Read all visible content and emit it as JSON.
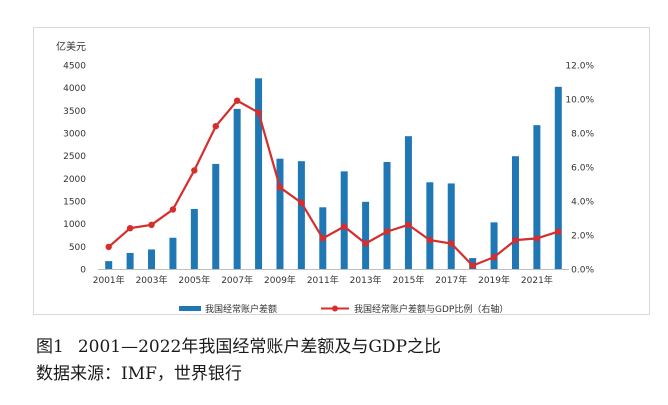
{
  "chart_data": {
    "type": "bar",
    "title": "",
    "left_unit": "亿美元",
    "x": [
      "2001",
      "2002",
      "2003",
      "2004",
      "2005",
      "2006",
      "2007",
      "2008",
      "2009",
      "2010",
      "2011",
      "2012",
      "2013",
      "2014",
      "2015",
      "2016",
      "2017",
      "2018",
      "2019",
      "2020",
      "2021",
      "2022"
    ],
    "x_tick_labels": [
      "2001年",
      "2003年",
      "2005年",
      "2007年",
      "2009年",
      "2011年",
      "2013年",
      "2015年",
      "2017年",
      "2019年",
      "2021年"
    ],
    "y_left_ticks": [
      "0",
      "500",
      "1000",
      "1500",
      "2000",
      "2500",
      "3000",
      "3500",
      "4000",
      "4500"
    ],
    "y_left_range": [
      0,
      4500
    ],
    "y_right_ticks": [
      "0.0%",
      "2.0%",
      "4.0%",
      "6.0%",
      "8.0%",
      "10.0%",
      "12.0%"
    ],
    "y_right_range": [
      0,
      12
    ],
    "series": [
      {
        "name": "我国经常账户差额",
        "kind": "bar",
        "axis": "left",
        "color": "#1f77b4",
        "values": [
          174,
          354,
          431,
          689,
          1324,
          2318,
          3532,
          4206,
          2433,
          2378,
          1361,
          2154,
          1482,
          2360,
          2930,
          1913,
          1887,
          241,
          1029,
          2488,
          3173,
          4019
        ]
      },
      {
        "name": "我国经常账户差额与GDP比例（右轴）",
        "kind": "line",
        "axis": "right",
        "color": "#d62d2d",
        "values": [
          1.3,
          2.4,
          2.6,
          3.5,
          5.8,
          8.4,
          9.9,
          9.2,
          4.8,
          3.9,
          1.8,
          2.5,
          1.5,
          2.2,
          2.6,
          1.7,
          1.5,
          0.2,
          0.7,
          1.7,
          1.8,
          2.2
        ]
      }
    ],
    "legend_position": "bottom",
    "grid": false
  },
  "caption": {
    "figure_number": "图1",
    "title": "2001—2022年我国经常账户差额及与GDP之比",
    "source": "数据来源：IMF，世界银行"
  }
}
